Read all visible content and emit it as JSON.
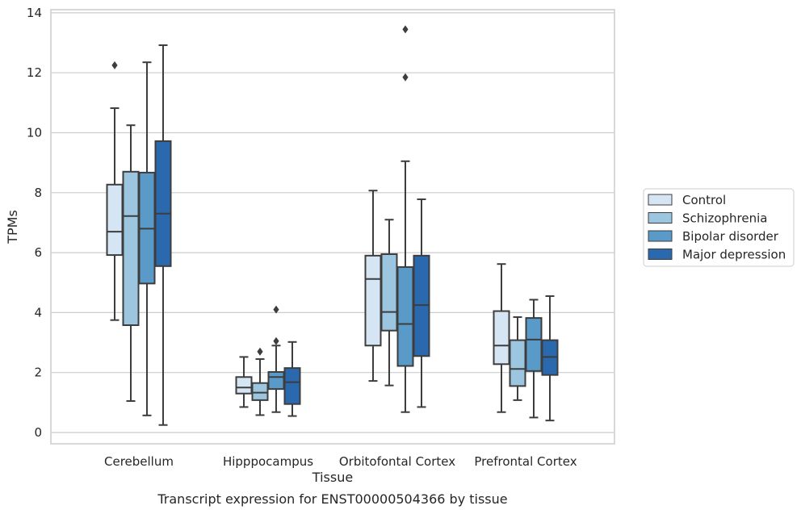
{
  "chart_data": {
    "type": "box",
    "title": "",
    "caption": "Transcript expression for ENST00000504366 by tissue",
    "xlabel": "Tissue",
    "ylabel": "TPMs",
    "ylim": [
      -0.4,
      14.1
    ],
    "yticks": [
      0,
      2,
      4,
      6,
      8,
      10,
      12,
      14
    ],
    "grid": "horizontal",
    "legend_position": "right",
    "categories": [
      "Cerebellum",
      "Hipppocampus",
      "Orbitofontal Cortex",
      "Prefrontal Cortex"
    ],
    "series": [
      {
        "name": "Control",
        "color": "#d6e5f4",
        "boxes": [
          {
            "whisker_low": 3.75,
            "q1": 5.92,
            "median": 6.7,
            "q3": 8.27,
            "whisker_high": 10.82,
            "outliers": [
              12.25
            ]
          },
          {
            "whisker_low": 0.85,
            "q1": 1.3,
            "median": 1.5,
            "q3": 1.85,
            "whisker_high": 2.52,
            "outliers": []
          },
          {
            "whisker_low": 1.72,
            "q1": 2.9,
            "median": 5.12,
            "q3": 5.9,
            "whisker_high": 8.07,
            "outliers": []
          },
          {
            "whisker_low": 0.68,
            "q1": 2.28,
            "median": 2.9,
            "q3": 4.05,
            "whisker_high": 5.62,
            "outliers": []
          }
        ]
      },
      {
        "name": "Schizophrenia",
        "color": "#9cc6e0",
        "boxes": [
          {
            "whisker_low": 1.05,
            "q1": 3.58,
            "median": 7.22,
            "q3": 8.7,
            "whisker_high": 10.25,
            "outliers": []
          },
          {
            "whisker_low": 0.58,
            "q1": 1.08,
            "median": 1.33,
            "q3": 1.65,
            "whisker_high": 2.45,
            "outliers": [
              2.7
            ]
          },
          {
            "whisker_low": 1.57,
            "q1": 3.4,
            "median": 4.02,
            "q3": 5.95,
            "whisker_high": 7.1,
            "outliers": []
          },
          {
            "whisker_low": 1.08,
            "q1": 1.55,
            "median": 2.12,
            "q3": 3.08,
            "whisker_high": 3.85,
            "outliers": []
          }
        ]
      },
      {
        "name": "Bipolar disorder",
        "color": "#5a9ac8",
        "boxes": [
          {
            "whisker_low": 0.57,
            "q1": 4.97,
            "median": 6.8,
            "q3": 8.67,
            "whisker_high": 12.35,
            "outliers": []
          },
          {
            "whisker_low": 0.68,
            "q1": 1.45,
            "median": 1.85,
            "q3": 2.02,
            "whisker_high": 2.9,
            "outliers": [
              3.05,
              4.1
            ]
          },
          {
            "whisker_low": 0.68,
            "q1": 2.22,
            "median": 3.62,
            "q3": 5.52,
            "whisker_high": 9.05,
            "outliers": [
              11.85,
              13.45
            ]
          },
          {
            "whisker_low": 0.5,
            "q1": 2.05,
            "median": 3.1,
            "q3": 3.82,
            "whisker_high": 4.43,
            "outliers": []
          }
        ]
      },
      {
        "name": "Major depression",
        "color": "#2a69ad",
        "boxes": [
          {
            "whisker_low": 0.25,
            "q1": 5.55,
            "median": 7.3,
            "q3": 9.72,
            "whisker_high": 12.92,
            "outliers": []
          },
          {
            "whisker_low": 0.55,
            "q1": 0.95,
            "median": 1.68,
            "q3": 2.15,
            "whisker_high": 3.02,
            "outliers": []
          },
          {
            "whisker_low": 0.85,
            "q1": 2.55,
            "median": 4.25,
            "q3": 5.9,
            "whisker_high": 7.78,
            "outliers": []
          },
          {
            "whisker_low": 0.4,
            "q1": 1.92,
            "median": 2.52,
            "q3": 3.08,
            "whisker_high": 4.55,
            "outliers": []
          }
        ]
      }
    ]
  }
}
